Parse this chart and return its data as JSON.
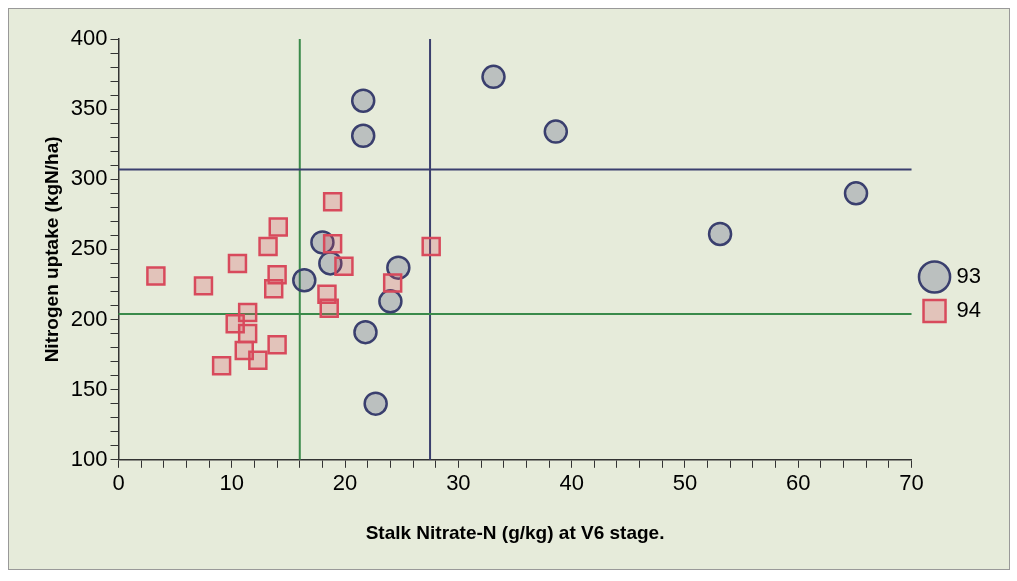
{
  "chart_data": {
    "type": "scatter",
    "xlabel": "Stalk Nitrate-N (g/kg) at V6 stage.",
    "ylabel": "Nitrogen uptake (kgN/ha)",
    "xlim": [
      0,
      70
    ],
    "ylim": [
      100,
      400
    ],
    "xticks": [
      0,
      {
        "value": 2,
        "label": null
      },
      {
        "value": 4,
        "label": null
      },
      {
        "value": 6,
        "label": null
      },
      {
        "value": 8,
        "label": null
      },
      10,
      {
        "value": 12,
        "label": null
      },
      {
        "value": 14,
        "label": null
      },
      {
        "value": 16,
        "label": null
      },
      {
        "value": 18,
        "label": null
      },
      20,
      {
        "value": 22,
        "label": null
      },
      {
        "value": 24,
        "label": null
      },
      {
        "value": 26,
        "label": null
      },
      {
        "value": 28,
        "label": null
      },
      30,
      {
        "value": 32,
        "label": null
      },
      {
        "value": 34,
        "label": null
      },
      {
        "value": 36,
        "label": null
      },
      {
        "value": 38,
        "label": null
      },
      40,
      {
        "value": 42,
        "label": null
      },
      {
        "value": 44,
        "label": null
      },
      {
        "value": 46,
        "label": null
      },
      {
        "value": 48,
        "label": null
      },
      50,
      {
        "value": 52,
        "label": null
      },
      {
        "value": 54,
        "label": null
      },
      {
        "value": 56,
        "label": null
      },
      {
        "value": 58,
        "label": null
      },
      60,
      {
        "value": 62,
        "label": null
      },
      {
        "value": 64,
        "label": null
      },
      {
        "value": 66,
        "label": null
      },
      {
        "value": 68,
        "label": null
      },
      70
    ],
    "yticks": [
      100,
      {
        "value": 110,
        "label": null
      },
      {
        "value": 120,
        "label": null
      },
      {
        "value": 130,
        "label": null
      },
      {
        "value": 140,
        "label": null
      },
      150,
      {
        "value": 160,
        "label": null
      },
      {
        "value": 170,
        "label": null
      },
      {
        "value": 180,
        "label": null
      },
      {
        "value": 190,
        "label": null
      },
      200,
      {
        "value": 210,
        "label": null
      },
      {
        "value": 220,
        "label": null
      },
      {
        "value": 230,
        "label": null
      },
      {
        "value": 240,
        "label": null
      },
      250,
      {
        "value": 260,
        "label": null
      },
      {
        "value": 270,
        "label": null
      },
      {
        "value": 280,
        "label": null
      },
      {
        "value": 290,
        "label": null
      },
      300,
      {
        "value": 310,
        "label": null
      },
      {
        "value": 320,
        "label": null
      },
      {
        "value": 330,
        "label": null
      },
      {
        "value": 340,
        "label": null
      },
      350,
      {
        "value": 360,
        "label": null
      },
      {
        "value": 370,
        "label": null
      },
      {
        "value": 380,
        "label": null
      },
      {
        "value": 390,
        "label": null
      },
      400
    ],
    "grid": false,
    "legend": "right",
    "ref_lines": [
      {
        "axis": "x",
        "value": 16,
        "color": "#3a8a4a"
      },
      {
        "axis": "x",
        "value": 27.5,
        "color": "#3a3f6e"
      },
      {
        "axis": "y",
        "value": 204,
        "color": "#3a8a4a"
      },
      {
        "axis": "y",
        "value": 307,
        "color": "#3a3f6e"
      }
    ],
    "series": [
      {
        "name": "93",
        "color": "#3a3f6e",
        "marker": "circle",
        "x": [
          33.1,
          21.6,
          21.6,
          38.6,
          53.1,
          65.1,
          18.0,
          18.7,
          16.4,
          24.7,
          24.0,
          21.8,
          22.7
        ],
        "values": [
          373,
          356,
          331,
          334,
          261,
          290,
          255,
          240,
          228,
          237,
          213,
          191,
          140
        ]
      },
      {
        "name": "94",
        "color": "#d84a5c",
        "marker": "square",
        "x": [
          3.3,
          7.5,
          10.5,
          13.2,
          14.1,
          18.9,
          18.9,
          19.9,
          27.6,
          24.2,
          14.0,
          13.7,
          18.4,
          18.6,
          11.4,
          10.3,
          11.4,
          11.1,
          14.0,
          9.1,
          12.3
        ],
        "values": [
          231,
          224,
          240,
          252,
          266,
          284,
          254,
          238,
          252,
          226,
          232,
          222,
          218,
          208,
          205,
          197,
          190,
          178,
          182,
          167,
          171
        ]
      }
    ]
  }
}
